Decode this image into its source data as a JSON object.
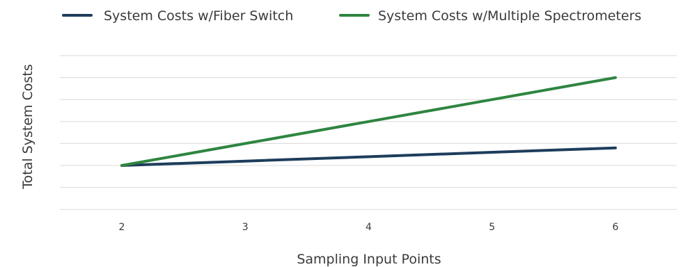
{
  "chart_data": {
    "type": "line",
    "title": "",
    "xlabel": "Sampling Input Points",
    "ylabel": "Total System Costs",
    "x": [
      2,
      3,
      4,
      5,
      6
    ],
    "x_tick_labels": [
      "2",
      "3",
      "4",
      "5",
      "6"
    ],
    "y_tick_labels_shown": false,
    "ylim": [
      0,
      7
    ],
    "grid": "horizontal",
    "legend_position": "top",
    "series": [
      {
        "name": "System Costs w/Fiber Switch",
        "color": "#1e3d5c",
        "values": [
          2,
          2.2,
          2.4,
          2.6,
          2.8
        ]
      },
      {
        "name": "System Costs w/Multiple Spectrometers",
        "color": "#2e8540",
        "values": [
          2,
          3,
          4,
          5,
          6
        ]
      }
    ]
  }
}
